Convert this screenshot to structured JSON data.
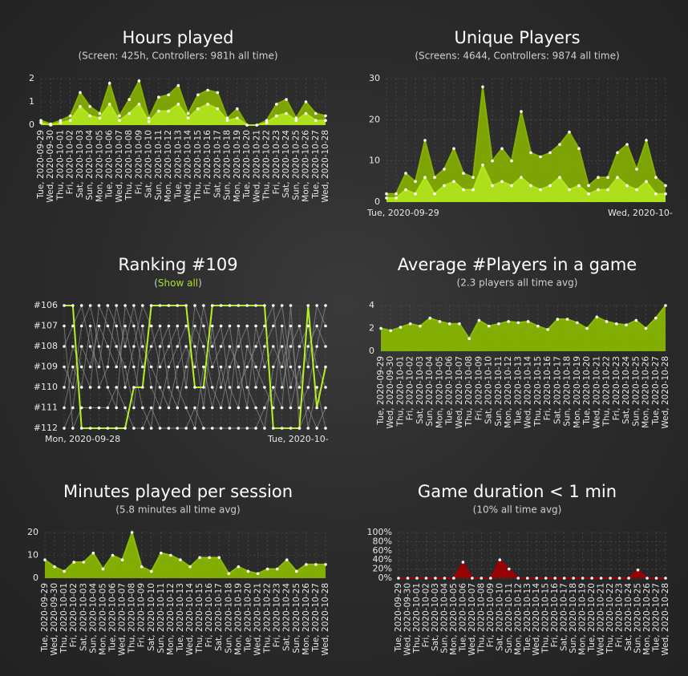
{
  "chart_data": [
    {
      "type": "area",
      "title": "Hours played",
      "subtitle": "(Screen: 425h, Controllers: 981h all time)",
      "categories": [
        "Tue, 2020-09-29",
        "Wed, 2020-09-30",
        "Thu, 2020-10-01",
        "Fri, 2020-10-02",
        "Sat, 2020-10-03",
        "Sun, 2020-10-04",
        "Mon, 2020-10-05",
        "Tue, 2020-10-06",
        "Wed, 2020-10-07",
        "Thu, 2020-10-08",
        "Fri, 2020-10-09",
        "Sat, 2020-10-10",
        "Sun, 2020-10-11",
        "Mon, 2020-10-12",
        "Tue, 2020-10-13",
        "Wed, 2020-10-14",
        "Thu, 2020-10-15",
        "Fri, 2020-10-16",
        "Sat, 2020-10-17",
        "Sun, 2020-10-18",
        "Mon, 2020-10-19",
        "Tue, 2020-10-20",
        "Wed, 2020-10-21",
        "Thu, 2020-10-22",
        "Fri, 2020-10-23",
        "Sat, 2020-10-24",
        "Sun, 2020-10-25",
        "Mon, 2020-10-26",
        "Tue, 2020-10-27",
        "Wed, 2020-10-28"
      ],
      "series": [
        {
          "color": "#86b000",
          "values": [
            0.2,
            0.05,
            0.2,
            0.4,
            1.4,
            0.8,
            0.5,
            1.8,
            0.4,
            1.1,
            1.9,
            0.3,
            1.2,
            1.3,
            1.7,
            0.5,
            1.3,
            1.5,
            1.4,
            0.3,
            0.7,
            0,
            0,
            0.2,
            0.9,
            1.1,
            0.3,
            1.0,
            0.5,
            0.4
          ]
        },
        {
          "color": "#b4e61e",
          "values": [
            0.1,
            0,
            0.1,
            0.2,
            0.8,
            0.4,
            0.3,
            0.9,
            0.2,
            0.5,
            0.9,
            0.15,
            0.6,
            0.6,
            0.9,
            0.3,
            0.7,
            0.9,
            0.7,
            0.2,
            0.3,
            0,
            0,
            0.1,
            0.4,
            0.5,
            0.2,
            0.5,
            0.2,
            0.2
          ]
        }
      ],
      "ylim": [
        0,
        2
      ],
      "yticks": [
        0,
        1,
        2
      ],
      "grid": true
    },
    {
      "type": "area",
      "title": "Unique Players",
      "subtitle": "(Screens: 4644, Controllers: 9874 all time)",
      "categories": [
        "Tue, 2020-09-29",
        null,
        null,
        null,
        null,
        null,
        null,
        null,
        null,
        null,
        null,
        null,
        null,
        null,
        null,
        null,
        null,
        null,
        null,
        null,
        null,
        null,
        null,
        null,
        null,
        null,
        null,
        null,
        null,
        "Wed, 2020-10-"
      ],
      "series": [
        {
          "color": "#86b000",
          "values": [
            2,
            2,
            7,
            5,
            15,
            6,
            8,
            13,
            7,
            6,
            28,
            10,
            13,
            10,
            22,
            12,
            11,
            12,
            14,
            17,
            13,
            4,
            6,
            6,
            12,
            14,
            8,
            15,
            6,
            4
          ]
        },
        {
          "color": "#b4e61e",
          "values": [
            1,
            1,
            3,
            2,
            6,
            2,
            4,
            5,
            3,
            3,
            9,
            4,
            5,
            4,
            6,
            4,
            3,
            4,
            6,
            3,
            4,
            2,
            3,
            3,
            6,
            4,
            3,
            5,
            2,
            2
          ]
        }
      ],
      "ylim": [
        0,
        30
      ],
      "yticks": [
        0,
        10,
        20,
        30
      ],
      "grid": true
    },
    {
      "type": "line",
      "title": "Ranking #109",
      "subtitle": {
        "before": "(",
        "link": "Show all",
        "after": ")"
      },
      "categories": [
        "Mon, 2020-09-28",
        null,
        null,
        null,
        null,
        null,
        null,
        null,
        null,
        null,
        null,
        null,
        null,
        null,
        null,
        null,
        null,
        null,
        null,
        null,
        null,
        null,
        null,
        null,
        null,
        null,
        null,
        null,
        null,
        null,
        "Tue, 2020-10-"
      ],
      "series": [
        {
          "color": "#8e8e8e",
          "values": [
            108,
            107,
            106,
            108,
            109,
            106,
            107,
            110,
            108,
            106,
            107,
            109,
            108,
            107,
            110,
            106,
            107,
            109,
            108,
            107,
            110,
            109,
            108,
            107,
            106,
            110,
            108,
            107,
            109,
            106,
            107
          ]
        },
        {
          "color": "#8e8e8e",
          "values": [
            109,
            110,
            107,
            106,
            108,
            110,
            111,
            106,
            107,
            109,
            108,
            107,
            110,
            111,
            109,
            107,
            108,
            110,
            111,
            109,
            108,
            107,
            110,
            108,
            107,
            106,
            109,
            110,
            108,
            107,
            108
          ]
        },
        {
          "color": "#8e8e8e",
          "values": [
            110,
            108,
            109,
            110,
            106,
            107,
            108,
            109,
            111,
            107,
            110,
            111,
            109,
            108,
            107,
            108,
            111,
            107,
            110,
            108,
            109,
            111,
            107,
            109,
            108,
            109,
            107,
            111,
            110,
            108,
            106
          ]
        },
        {
          "color": "#8e8e8e",
          "values": [
            111,
            109,
            110,
            107,
            110,
            109,
            106,
            108,
            106,
            108,
            109,
            110,
            111,
            109,
            108,
            109,
            106,
            108,
            107,
            110,
            111,
            108,
            109,
            110,
            111,
            107,
            110,
            108,
            107,
            109,
            110
          ]
        },
        {
          "color": "#8e8e8e",
          "values": [
            112,
            111,
            108,
            109,
            107,
            108,
            109,
            107,
            109,
            111,
            112,
            108,
            107,
            110,
            111,
            112,
            109,
            111,
            109,
            111,
            107,
            110,
            111,
            112,
            109,
            108,
            111,
            109,
            112,
            110,
            112
          ]
        },
        {
          "color": "#8e8e8e",
          "values": [
            107,
            112,
            111,
            111,
            111,
            111,
            110,
            111,
            112,
            112,
            111,
            112,
            112,
            112,
            112,
            111,
            112,
            112,
            112,
            112,
            112,
            112,
            112,
            111,
            110,
            111,
            106,
            112,
            111,
            112,
            111
          ]
        },
        {
          "color": "#b4f01e",
          "values": [
            106,
            106,
            112,
            112,
            112,
            112,
            112,
            112,
            110,
            110,
            106,
            106,
            106,
            106,
            106,
            110,
            110,
            106,
            106,
            106,
            106,
            106,
            106,
            106,
            112,
            112,
            112,
            112,
            106,
            111,
            109
          ]
        }
      ],
      "ylim": [
        112,
        106
      ],
      "yticks": [
        {
          "value": 106,
          "label": "#106"
        },
        {
          "value": 107,
          "label": "#107"
        },
        {
          "value": 108,
          "label": "#108"
        },
        {
          "value": 109,
          "label": "#109"
        },
        {
          "value": 110,
          "label": "#110"
        },
        {
          "value": 111,
          "label": "#111"
        },
        {
          "value": 112,
          "label": "#112"
        }
      ],
      "grid": true
    },
    {
      "type": "area",
      "title": "Average #Players in a game",
      "subtitle": "(2.3 players all time avg)",
      "categories": [
        "Tue, 2020-09-29",
        "Wed, 2020-09-30",
        "Thu, 2020-10-01",
        "Fri, 2020-10-02",
        "Sat, 2020-10-03",
        "Sun, 2020-10-04",
        "Mon, 2020-10-05",
        "Tue, 2020-10-06",
        "Wed, 2020-10-07",
        "Thu, 2020-10-08",
        "Fri, 2020-10-09",
        "Sat, 2020-10-10",
        "Sun, 2020-10-11",
        "Mon, 2020-10-12",
        "Tue, 2020-10-13",
        "Wed, 2020-10-14",
        "Thu, 2020-10-15",
        "Fri, 2020-10-16",
        "Sat, 2020-10-17",
        "Sun, 2020-10-18",
        "Mon, 2020-10-19",
        "Tue, 2020-10-20",
        "Wed, 2020-10-21",
        "Thu, 2020-10-22",
        "Fri, 2020-10-23",
        "Sat, 2020-10-24",
        "Sun, 2020-10-25",
        "Mon, 2020-10-26",
        "Tue, 2020-10-27",
        "Wed, 2020-10-28"
      ],
      "series": [
        {
          "color": "#8cbc00",
          "values": [
            2.0,
            1.8,
            2.1,
            2.4,
            2.2,
            2.9,
            2.6,
            2.4,
            2.4,
            1.1,
            2.7,
            2.2,
            2.4,
            2.6,
            2.5,
            2.6,
            2.2,
            1.9,
            2.8,
            2.8,
            2.5,
            2.0,
            3.0,
            2.6,
            2.4,
            2.3,
            2.7,
            2.0,
            2.9,
            4.0
          ]
        }
      ],
      "ylim": [
        0,
        4
      ],
      "yticks": [
        0,
        2,
        4
      ],
      "grid": true
    },
    {
      "type": "area",
      "title": "Minutes played per session",
      "subtitle": "(5.8 minutes all time avg)",
      "categories": [
        "Tue, 2020-09-29",
        "Wed, 2020-09-30",
        "Thu, 2020-10-01",
        "Fri, 2020-10-02",
        "Sat, 2020-10-03",
        "Sun, 2020-10-04",
        "Mon, 2020-10-05",
        "Tue, 2020-10-06",
        "Wed, 2020-10-07",
        "Thu, 2020-10-08",
        "Fri, 2020-10-09",
        "Sat, 2020-10-10",
        "Sun, 2020-10-11",
        "Mon, 2020-10-12",
        "Tue, 2020-10-13",
        "Wed, 2020-10-14",
        "Thu, 2020-10-15",
        "Fri, 2020-10-16",
        "Sat, 2020-10-17",
        "Sun, 2020-10-18",
        "Mon, 2020-10-19",
        "Tue, 2020-10-20",
        "Wed, 2020-10-21",
        "Thu, 2020-10-22",
        "Fri, 2020-10-23",
        "Sat, 2020-10-24",
        "Sun, 2020-10-25",
        "Mon, 2020-10-26",
        "Tue, 2020-10-27",
        "Wed, 2020-10-28"
      ],
      "series": [
        {
          "color": "#8cbc00",
          "values": [
            8,
            5,
            3,
            7,
            7,
            11,
            4,
            10,
            8,
            20,
            5,
            3,
            11,
            10,
            8,
            5,
            9,
            9,
            9,
            2,
            5,
            3,
            2,
            4,
            4,
            8,
            3,
            6,
            6,
            6
          ]
        }
      ],
      "ylim": [
        0,
        20
      ],
      "yticks": [
        0,
        10,
        20
      ],
      "grid": true
    },
    {
      "type": "area",
      "title": "Game duration < 1 min",
      "subtitle": "(10% all time avg)",
      "categories": [
        "Tue, 2020-09-29",
        "Wed, 2020-09-30",
        "Thu, 2020-10-01",
        "Fri, 2020-10-02",
        "Sat, 2020-10-03",
        "Sun, 2020-10-04",
        "Mon, 2020-10-05",
        "Tue, 2020-10-06",
        "Wed, 2020-10-07",
        "Thu, 2020-10-08",
        "Fri, 2020-10-09",
        "Sat, 2020-10-10",
        "Sun, 2020-10-11",
        "Mon, 2020-10-12",
        "Tue, 2020-10-13",
        "Wed, 2020-10-14",
        "Thu, 2020-10-15",
        "Fri, 2020-10-16",
        "Sat, 2020-10-17",
        "Sun, 2020-10-18",
        "Mon, 2020-10-19",
        "Tue, 2020-10-20",
        "Wed, 2020-10-21",
        "Thu, 2020-10-22",
        "Fri, 2020-10-23",
        "Sat, 2020-10-24",
        "Sun, 2020-10-25",
        "Mon, 2020-10-26",
        "Tue, 2020-10-27",
        "Wed, 2020-10-28"
      ],
      "series": [
        {
          "color": "#a00000",
          "values": [
            0,
            0,
            0,
            0,
            0,
            0,
            0,
            35,
            0,
            0,
            0,
            40,
            20,
            0,
            0,
            0,
            0,
            0,
            0,
            0,
            0,
            0,
            0,
            0,
            0,
            0,
            18,
            0,
            0,
            0
          ]
        }
      ],
      "ylim": [
        0,
        100
      ],
      "yticks": [
        {
          "value": 0,
          "label": "0%"
        },
        {
          "value": 20,
          "label": "20%"
        },
        {
          "value": 40,
          "label": "40%"
        },
        {
          "value": 60,
          "label": "60%"
        },
        {
          "value": 80,
          "label": "80%"
        },
        {
          "value": 100,
          "label": "100%"
        }
      ],
      "grid": true
    }
  ]
}
